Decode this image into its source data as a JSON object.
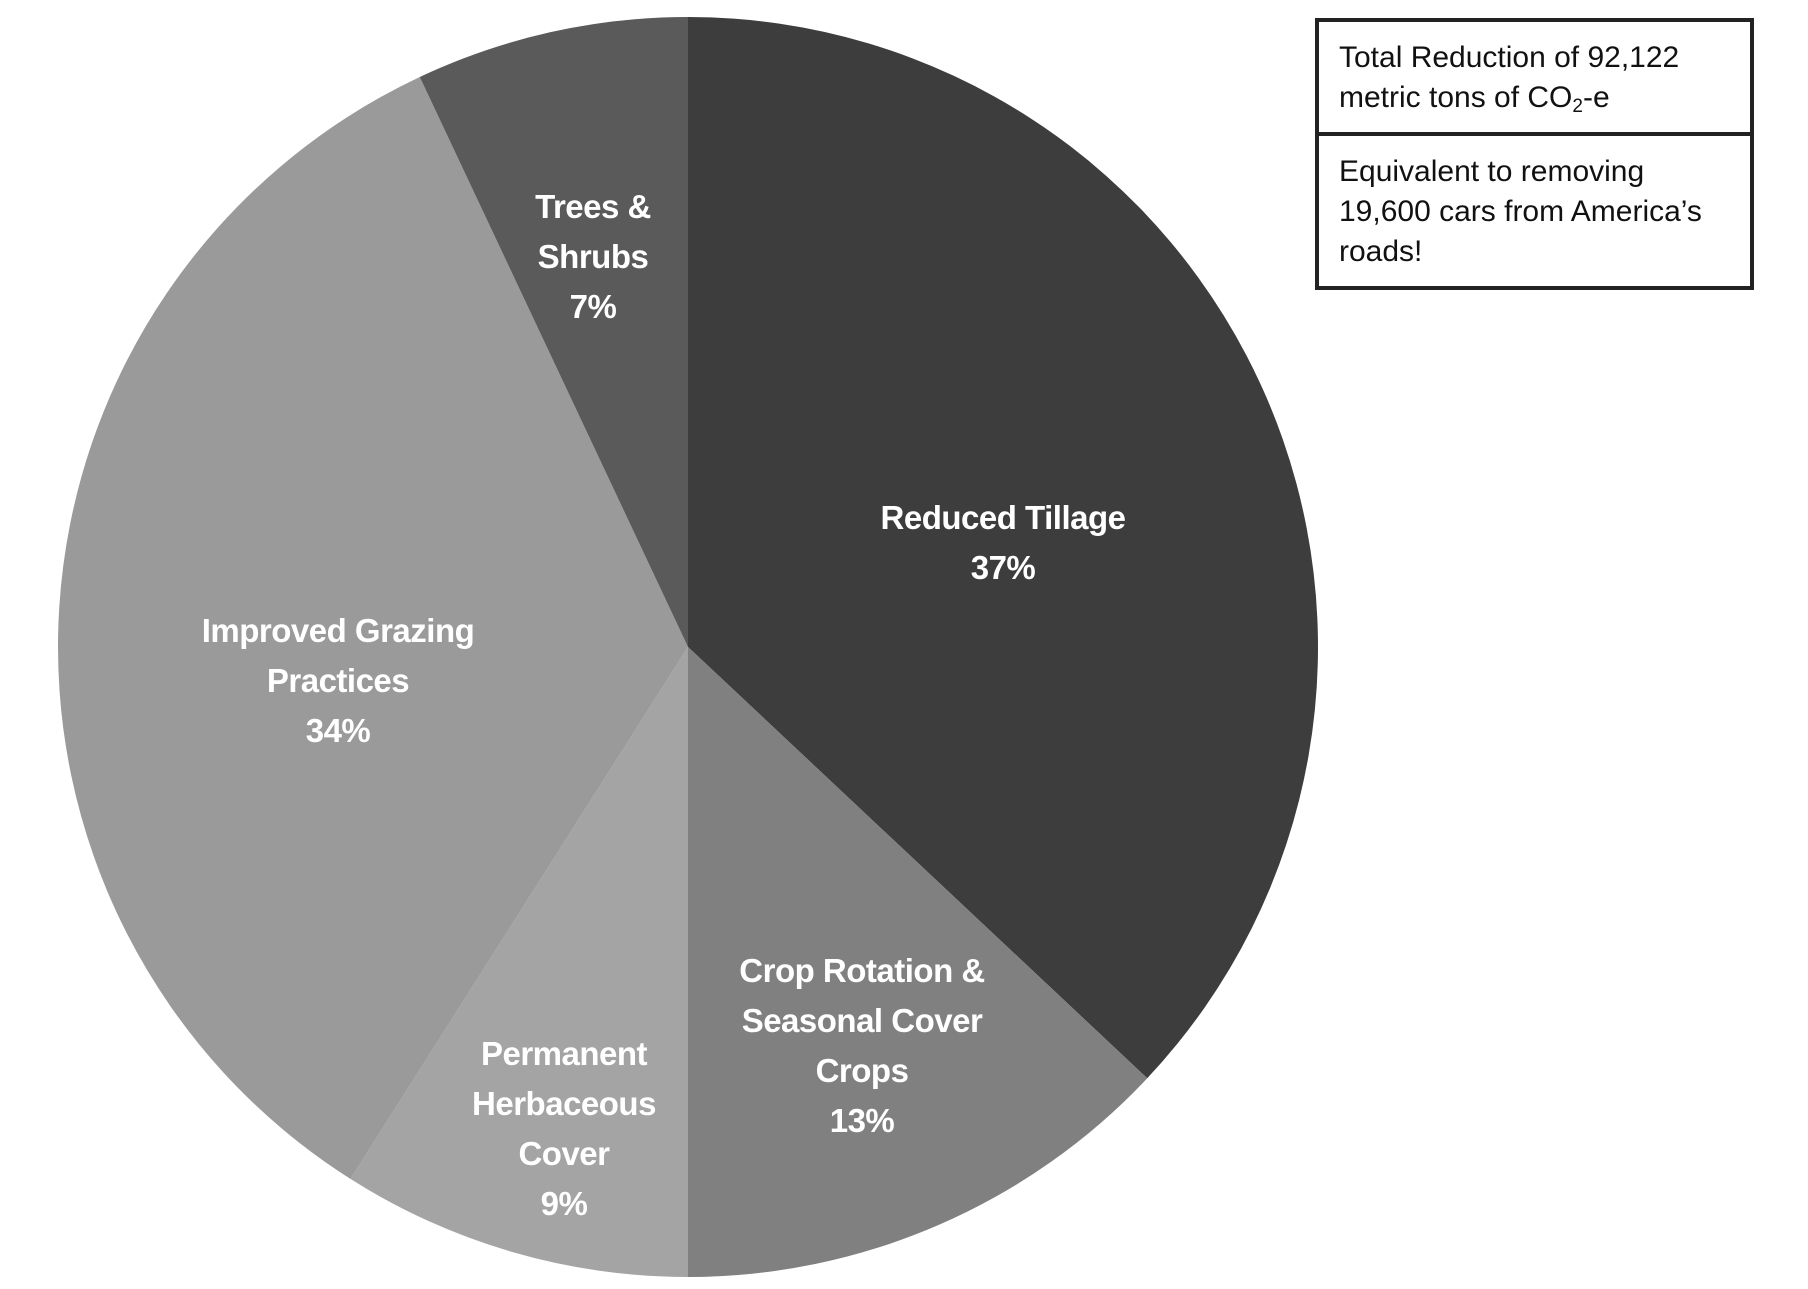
{
  "chart_data": {
    "type": "pie",
    "title": "",
    "slices": [
      {
        "label_lines": [
          "Reduced Tillage"
        ],
        "label": "Reduced Tillage",
        "value": 37,
        "value_label": "37%",
        "color": "#3d3d3d"
      },
      {
        "label_lines": [
          "Crop Rotation &",
          "Seasonal Cover",
          "Crops"
        ],
        "label": "Crop Rotation & Seasonal Cover Crops",
        "value": 13,
        "value_label": "13%",
        "color": "#808080"
      },
      {
        "label_lines": [
          "Permanent",
          "Herbaceous",
          "Cover"
        ],
        "label": "Permanent Herbaceous Cover",
        "value": 9,
        "value_label": "9%",
        "color": "#a4a4a4"
      },
      {
        "label_lines": [
          "Improved Grazing",
          "Practices"
        ],
        "label": "Improved Grazing Practices",
        "value": 34,
        "value_label": "34%",
        "color": "#9a9a9a"
      },
      {
        "label_lines": [
          "Trees &",
          "Shrubs"
        ],
        "label": "Trees & Shrubs",
        "value": 7,
        "value_label": "7%",
        "color": "#5a5a5a"
      }
    ],
    "start_angle_deg": 0,
    "direction": "clockwise"
  },
  "info_box": {
    "total_line1": "Total Reduction of 92,122",
    "total_line2_prefix": "metric tons of CO",
    "total_line2_sub": "2",
    "total_line2_suffix": "-e",
    "equivalent_text": "Equivalent to removing 19,600 cars from America’s roads!"
  }
}
